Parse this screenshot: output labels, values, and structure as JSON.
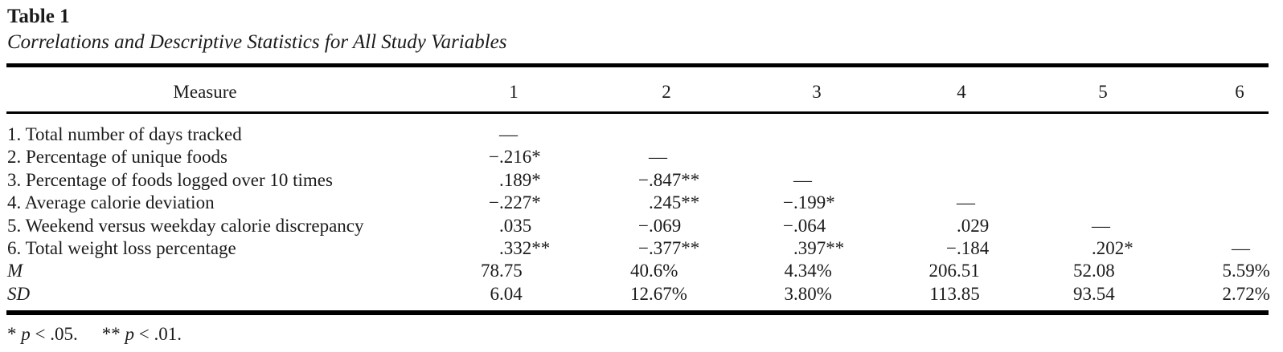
{
  "table": {
    "label": "Table 1",
    "caption": "Correlations and Descriptive Statistics for All Study Variables",
    "columns": [
      "Measure",
      "1",
      "2",
      "3",
      "4",
      "5",
      "6"
    ],
    "rows": [
      {
        "measure": "1. Total number of days tracked",
        "italic": false,
        "values": [
          "—",
          "",
          "",
          "",
          "",
          ""
        ]
      },
      {
        "measure": "2. Percentage of unique foods",
        "italic": false,
        "values": [
          "−.216*",
          "—",
          "",
          "",
          "",
          ""
        ]
      },
      {
        "measure": "3. Percentage of foods logged over 10 times",
        "italic": false,
        "values": [
          ".189*",
          "−.847**",
          "—",
          "",
          "",
          ""
        ]
      },
      {
        "measure": "4. Average calorie deviation",
        "italic": false,
        "values": [
          "−.227*",
          ".245**",
          "−.199*",
          "—",
          "",
          ""
        ]
      },
      {
        "measure": "5. Weekend versus weekday calorie discrepancy",
        "italic": false,
        "values": [
          ".035",
          "−.069",
          "−.064",
          ".029",
          "—",
          ""
        ]
      },
      {
        "measure": "6. Total weight loss percentage",
        "italic": false,
        "values": [
          ".332**",
          "−.377**",
          ".397**",
          "−.184",
          ".202*",
          "—"
        ]
      },
      {
        "measure": "M",
        "italic": true,
        "values": [
          "78.75",
          "40.6%",
          "4.34%",
          "206.51",
          "52.08",
          "5.59%"
        ]
      },
      {
        "measure": "SD",
        "italic": true,
        "values": [
          "6.04",
          "12.67%",
          "3.80%",
          "113.85",
          "93.54",
          "2.72%"
        ]
      }
    ],
    "note_parts": [
      {
        "text": "* ",
        "italic": false,
        "gap": false
      },
      {
        "text": "p",
        "italic": true,
        "gap": false
      },
      {
        "text": " < .05.",
        "italic": false,
        "gap": false
      },
      {
        "text": "** ",
        "italic": false,
        "gap": true
      },
      {
        "text": "p",
        "italic": true,
        "gap": false
      },
      {
        "text": " < .01.",
        "italic": false,
        "gap": false
      }
    ]
  },
  "colors": {
    "background": "#ffffff",
    "text": "#1b1b1b",
    "rule": "#000000"
  }
}
